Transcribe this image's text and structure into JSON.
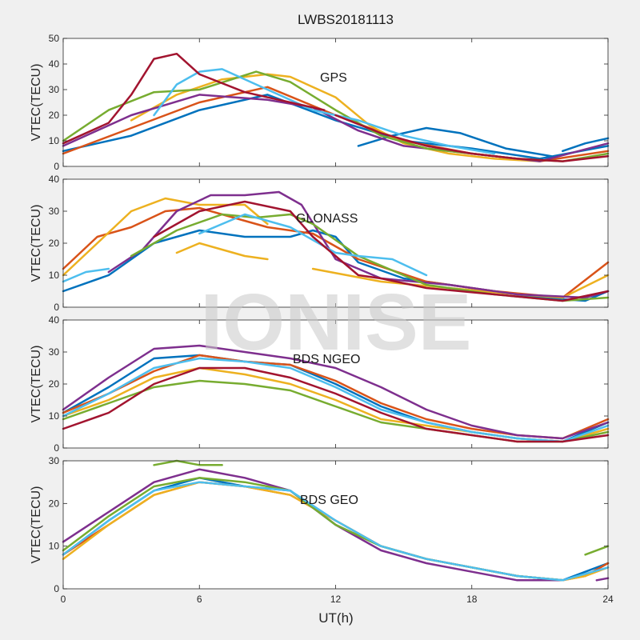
{
  "figure": {
    "title": "LWBS20181113",
    "xlabel": "UT(h)",
    "watermark": "IONISE"
  },
  "chart_data": [
    {
      "type": "line",
      "annotation": "GPS",
      "ylabel": "VTEC(TECU)",
      "xlim": [
        0,
        24
      ],
      "ylim": [
        0,
        50
      ],
      "xticks": [
        0,
        6,
        12,
        18,
        24
      ],
      "yticks": [
        0,
        10,
        20,
        30,
        40,
        50
      ],
      "series": [
        {
          "color": "#0072BD",
          "x": [
            0,
            3,
            6,
            9,
            12,
            15,
            18,
            21,
            24
          ],
          "y": [
            6,
            12,
            22,
            28,
            18,
            10,
            7,
            3,
            8
          ]
        },
        {
          "color": "#0072BD",
          "x": [
            13,
            14.5,
            16,
            17.5,
            19.5,
            21.5
          ],
          "y": [
            8,
            12,
            15,
            13,
            7,
            4
          ]
        },
        {
          "color": "#0072BD",
          "x": [
            22,
            23,
            24
          ],
          "y": [
            6,
            9,
            11
          ]
        },
        {
          "color": "#D95319",
          "x": [
            0,
            3,
            6,
            9,
            12,
            15,
            18,
            21,
            24
          ],
          "y": [
            5,
            15,
            25,
            31,
            20,
            10,
            5,
            2,
            6
          ]
        },
        {
          "color": "#EDB120",
          "x": [
            3,
            5,
            7,
            9,
            10,
            12,
            13.5,
            15,
            17,
            19,
            21
          ],
          "y": [
            18,
            28,
            34,
            36,
            35,
            27,
            16,
            9,
            5,
            3,
            2
          ]
        },
        {
          "color": "#7E2F8E",
          "x": [
            0,
            3,
            6,
            9,
            11,
            13,
            15,
            18,
            21,
            24
          ],
          "y": [
            8,
            20,
            28,
            26,
            23,
            14,
            8,
            5,
            2,
            9
          ]
        },
        {
          "color": "#77AC30",
          "x": [
            0,
            2,
            4,
            6,
            8.5,
            10,
            12,
            14,
            16,
            18,
            20,
            22,
            24
          ],
          "y": [
            10,
            22,
            29,
            30,
            37,
            33,
            22,
            12,
            7,
            5,
            3,
            2,
            5
          ]
        },
        {
          "color": "#4DBEEE",
          "x": [
            4,
            5,
            6,
            7,
            9,
            11,
            13,
            15,
            17,
            19
          ],
          "y": [
            20,
            32,
            37,
            38,
            30,
            22,
            18,
            12,
            8,
            5
          ]
        },
        {
          "color": "#A2142F",
          "x": [
            0,
            2,
            3,
            4,
            5,
            6,
            8,
            10,
            11.5
          ],
          "y": [
            9,
            17,
            28,
            42,
            44,
            36,
            29,
            25,
            22
          ]
        },
        {
          "color": "#A2142F",
          "x": [
            12,
            14,
            16,
            18,
            20,
            22,
            24
          ],
          "y": [
            20,
            13,
            8,
            5,
            3,
            2,
            4
          ]
        }
      ]
    },
    {
      "type": "line",
      "annotation": "GLONASS",
      "ylabel": "VTEC(TECU)",
      "xlim": [
        0,
        24
      ],
      "ylim": [
        0,
        40
      ],
      "xticks": [
        0,
        6,
        12,
        18,
        24
      ],
      "yticks": [
        0,
        10,
        20,
        30,
        40
      ],
      "series": [
        {
          "color": "#0072BD",
          "x": [
            0,
            2,
            4,
            6,
            8,
            10,
            11,
            12,
            13,
            15,
            17,
            19,
            21,
            23,
            24
          ],
          "y": [
            5,
            10,
            20,
            24,
            22,
            22,
            24,
            22,
            14,
            9,
            7,
            5,
            3,
            2,
            5
          ]
        },
        {
          "color": "#D95319",
          "x": [
            0,
            1.5,
            3,
            4.5,
            6,
            7.5,
            9,
            11,
            13,
            16,
            19,
            22,
            24
          ],
          "y": [
            12,
            22,
            25,
            30,
            31,
            28,
            25,
            23,
            15,
            8,
            5,
            3,
            14
          ]
        },
        {
          "color": "#EDB120",
          "x": [
            0,
            1.5,
            3,
            4.5,
            6,
            8,
            9
          ],
          "y": [
            10,
            20,
            30,
            34,
            32,
            32,
            26
          ]
        },
        {
          "color": "#EDB120",
          "x": [
            5,
            6,
            7,
            8,
            9
          ],
          "y": [
            17,
            20,
            18,
            16,
            15
          ]
        },
        {
          "color": "#EDB120",
          "x": [
            11,
            14,
            17,
            20,
            22,
            24
          ],
          "y": [
            12,
            8,
            6,
            4,
            3,
            10
          ]
        },
        {
          "color": "#7E2F8E",
          "x": [
            2,
            3.5,
            5,
            6.5,
            8,
            9.5,
            10.5,
            12,
            14,
            17,
            20,
            23,
            24
          ],
          "y": [
            11,
            18,
            30,
            35,
            35,
            36,
            32,
            15,
            9,
            7,
            4,
            3,
            5
          ]
        },
        {
          "color": "#77AC30",
          "x": [
            3,
            5,
            7,
            8.5,
            10,
            11,
            13,
            16,
            19,
            22,
            24
          ],
          "y": [
            16,
            24,
            29,
            28,
            29,
            26,
            16,
            7,
            4,
            2,
            3
          ]
        },
        {
          "color": "#4DBEEE",
          "x": [
            0,
            1,
            2
          ],
          "y": [
            8,
            11,
            12
          ]
        },
        {
          "color": "#4DBEEE",
          "x": [
            6,
            8,
            10,
            12,
            13,
            14.5,
            16
          ],
          "y": [
            23,
            29,
            25,
            17,
            16,
            15,
            10
          ]
        },
        {
          "color": "#A2142F",
          "x": [
            4,
            6,
            8,
            10,
            11,
            12,
            13,
            14,
            16,
            19,
            22,
            24
          ],
          "y": [
            22,
            30,
            33,
            30,
            22,
            16,
            10,
            9,
            6,
            4,
            2,
            5
          ]
        }
      ]
    },
    {
      "type": "line",
      "annotation": "BDS NGEO",
      "ylabel": "VTEC(TECU)",
      "xlim": [
        0,
        24
      ],
      "ylim": [
        0,
        40
      ],
      "xticks": [
        0,
        6,
        12,
        18,
        24
      ],
      "yticks": [
        0,
        10,
        20,
        30,
        40
      ],
      "series": [
        {
          "color": "#0072BD",
          "x": [
            0,
            2,
            4,
            6,
            8,
            10,
            12,
            14,
            16,
            18,
            20,
            22,
            24
          ],
          "y": [
            11,
            19,
            28,
            29,
            27,
            26,
            20,
            13,
            8,
            5,
            3,
            2,
            8
          ]
        },
        {
          "color": "#D95319",
          "x": [
            0,
            2,
            4,
            6,
            8,
            10,
            12,
            14,
            16,
            18,
            20,
            22,
            24
          ],
          "y": [
            11,
            17,
            24,
            29,
            27,
            26,
            21,
            14,
            9,
            6,
            4,
            3,
            9
          ]
        },
        {
          "color": "#EDB120",
          "x": [
            0,
            2,
            4,
            6,
            8,
            10,
            12,
            14,
            16,
            18,
            20,
            22,
            24
          ],
          "y": [
            10,
            15,
            22,
            25,
            23,
            20,
            15,
            9,
            7,
            5,
            3,
            2,
            6
          ]
        },
        {
          "color": "#7E2F8E",
          "x": [
            0,
            2,
            4,
            6,
            8,
            10,
            12,
            14,
            16,
            18,
            20,
            22,
            24
          ],
          "y": [
            12,
            22,
            31,
            32,
            30,
            28,
            25,
            19,
            12,
            7,
            4,
            3,
            8
          ]
        },
        {
          "color": "#77AC30",
          "x": [
            0,
            2,
            4,
            6,
            8,
            10,
            12,
            14,
            16,
            18,
            20,
            22,
            24
          ],
          "y": [
            9,
            14,
            19,
            21,
            20,
            18,
            13,
            8,
            6,
            4,
            2,
            2,
            5
          ]
        },
        {
          "color": "#4DBEEE",
          "x": [
            0,
            2,
            4,
            6,
            8,
            10,
            12,
            14,
            16,
            18,
            20,
            22,
            24
          ],
          "y": [
            10,
            17,
            25,
            28,
            27,
            25,
            19,
            12,
            8,
            5,
            3,
            2,
            7
          ]
        },
        {
          "color": "#A2142F",
          "x": [
            0,
            2,
            4,
            6,
            8,
            10,
            12,
            14,
            16,
            18,
            20,
            22,
            24
          ],
          "y": [
            6,
            11,
            20,
            25,
            25,
            22,
            17,
            11,
            6,
            4,
            2,
            2,
            4
          ]
        }
      ]
    },
    {
      "type": "line",
      "annotation": "BDS GEO",
      "ylabel": "VTEC(TECU)",
      "xlim": [
        0,
        24
      ],
      "ylim": [
        0,
        30
      ],
      "xticks": [
        0,
        6,
        12,
        18,
        24
      ],
      "yticks": [
        0,
        10,
        20,
        30
      ],
      "series": [
        {
          "color": "#0072BD",
          "x": [
            0,
            2,
            4,
            6,
            8,
            10,
            12,
            14,
            16,
            18,
            20,
            22,
            23,
            24
          ],
          "y": [
            8,
            16,
            23,
            26,
            24,
            23,
            15,
            10,
            7,
            5,
            3,
            2,
            4,
            6
          ]
        },
        {
          "color": "#D95319",
          "x": [
            0,
            2,
            4,
            6,
            8,
            10,
            12,
            14,
            16,
            18,
            20,
            22,
            23,
            24
          ],
          "y": [
            8,
            15,
            22,
            25,
            24,
            22,
            16,
            10,
            7,
            5,
            3,
            2,
            3,
            6
          ]
        },
        {
          "color": "#EDB120",
          "x": [
            0,
            2,
            4,
            6,
            8,
            10,
            12,
            14,
            16,
            18,
            20,
            22,
            23,
            24
          ],
          "y": [
            7,
            15,
            22,
            25,
            24,
            22,
            16,
            10,
            7,
            5,
            3,
            2,
            3,
            5
          ]
        },
        {
          "color": "#7E2F8E",
          "x": [
            0,
            2,
            4,
            6,
            8,
            10,
            12,
            14,
            16,
            18,
            20,
            22
          ],
          "y": [
            11,
            18,
            25,
            28,
            26,
            23,
            15,
            9,
            6,
            4,
            2,
            2
          ]
        },
        {
          "color": "#7E2F8E",
          "x": [
            23.5,
            24
          ],
          "y": [
            2,
            2.5
          ]
        },
        {
          "color": "#77AC30",
          "x": [
            0,
            2,
            4,
            6,
            8,
            10,
            12,
            14,
            16,
            18,
            20,
            22
          ],
          "y": [
            9,
            17,
            24,
            26,
            25,
            23,
            15,
            10,
            7,
            5,
            3,
            2
          ]
        },
        {
          "color": "#77AC30",
          "x": [
            4,
            5,
            6,
            7
          ],
          "y": [
            29,
            30,
            29,
            29
          ]
        },
        {
          "color": "#77AC30",
          "x": [
            23,
            24
          ],
          "y": [
            8,
            10
          ]
        },
        {
          "color": "#4DBEEE",
          "x": [
            0,
            2,
            4,
            6,
            8,
            10,
            12,
            14,
            16,
            18,
            20,
            22,
            24
          ],
          "y": [
            8,
            16,
            23,
            25,
            24,
            23,
            16,
            10,
            7,
            5,
            3,
            2,
            5
          ]
        }
      ]
    }
  ]
}
